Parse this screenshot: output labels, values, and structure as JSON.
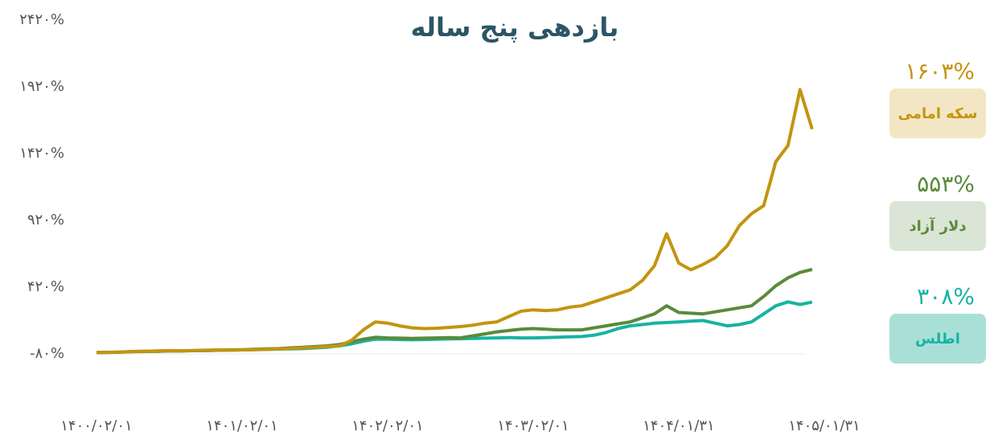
{
  "chart_data": {
    "type": "line",
    "title": "بازدهی پنج ساله",
    "categories": [
      "۱۴۰۰/۰۲/۰۱",
      null,
      null,
      null,
      null,
      null,
      null,
      null,
      null,
      null,
      null,
      null,
      "۱۴۰۱/۰۲/۰۱",
      null,
      null,
      null,
      null,
      null,
      null,
      null,
      null,
      null,
      null,
      null,
      "۱۴۰۲/۰۲/۰۱",
      null,
      null,
      null,
      null,
      null,
      null,
      null,
      null,
      null,
      null,
      null,
      "۱۴۰۳/۰۲/۰۱",
      null,
      null,
      null,
      null,
      null,
      null,
      null,
      null,
      null,
      null,
      null,
      "۱۴۰۴/۰۱/۳۱",
      null,
      null,
      null,
      null,
      null,
      null,
      null,
      null,
      null,
      null,
      null,
      "۱۴۰۵/۰۱/۳۱"
    ],
    "series": [
      {
        "name": "سکه امامی",
        "color": "#c4940f",
        "box_color": "#f3e6c4",
        "end_label": "۱۶۰۳%",
        "values": [
          -70,
          -68,
          -66,
          -62,
          -60,
          -58,
          -55,
          -57,
          -54,
          -52,
          -50,
          -52,
          -50,
          -48,
          -45,
          -42,
          -40,
          -35,
          -30,
          -25,
          -20,
          20,
          100,
          160,
          150,
          130,
          115,
          110,
          112,
          118,
          125,
          135,
          150,
          160,
          200,
          240,
          250,
          245,
          250,
          270,
          280,
          310,
          340,
          370,
          400,
          470,
          580,
          820,
          600,
          550,
          590,
          640,
          730,
          880,
          970,
          1030,
          1360,
          1480,
          1900,
          1603,
          null
        ]
      },
      {
        "name": "دلار آزاد",
        "color": "#5a8a3a",
        "box_color": "#dbe5d5",
        "end_label": "۵۵۳%",
        "values": [
          -70,
          -68,
          -66,
          -64,
          -62,
          -60,
          -58,
          -57,
          -55,
          -54,
          -52,
          -50,
          -48,
          -45,
          -42,
          -40,
          -35,
          -30,
          -25,
          -20,
          -10,
          10,
          30,
          45,
          40,
          38,
          36,
          38,
          40,
          42,
          40,
          55,
          70,
          85,
          95,
          105,
          110,
          105,
          100,
          100,
          100,
          115,
          130,
          145,
          160,
          190,
          220,
          280,
          230,
          225,
          220,
          235,
          250,
          265,
          280,
          350,
          430,
          490,
          530,
          553,
          null
        ]
      },
      {
        "name": "اطلس",
        "color": "#17b3a3",
        "box_color": "#a8e0d8",
        "end_label": "۳۰۸%",
        "values": [
          -70,
          -69,
          -67,
          -62,
          -60,
          -60,
          -58,
          -57,
          -56,
          -55,
          -53,
          -52,
          -50,
          -48,
          -46,
          -44,
          -42,
          -40,
          -35,
          -30,
          -20,
          -5,
          15,
          30,
          30,
          28,
          26,
          28,
          30,
          32,
          34,
          36,
          38,
          40,
          42,
          40,
          40,
          42,
          45,
          48,
          50,
          60,
          80,
          110,
          130,
          140,
          150,
          155,
          160,
          165,
          170,
          150,
          130,
          140,
          160,
          220,
          280,
          310,
          290,
          308,
          null
        ]
      }
    ],
    "ylim": [
      -80,
      2420
    ],
    "yticks": [
      {
        "value": -80,
        "label": "-۸۰%"
      },
      {
        "value": 420,
        "label": "۴۲۰%"
      },
      {
        "value": 920,
        "label": "۹۲۰%"
      },
      {
        "value": 1420,
        "label": "۱۴۲۰%"
      },
      {
        "value": 1920,
        "label": "۱۹۲۰%"
      },
      {
        "value": 2420,
        "label": "۲۴۲۰%"
      }
    ],
    "grid": false
  }
}
